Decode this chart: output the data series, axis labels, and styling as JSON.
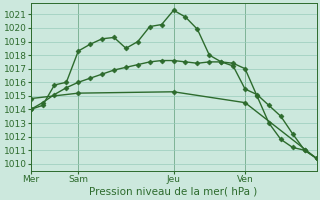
{
  "background_color": "#cce8dd",
  "grid_color": "#99ccbb",
  "line_color": "#2d6b2d",
  "marker": "D",
  "markersize": 2.5,
  "linewidth": 1.0,
  "ylim": [
    1009.5,
    1021.8
  ],
  "yticks": [
    1010,
    1011,
    1012,
    1013,
    1014,
    1015,
    1016,
    1017,
    1018,
    1019,
    1020,
    1021
  ],
  "xlabel": "Pression niveau de la mer( hPa )",
  "xlabel_fontsize": 7.5,
  "tick_fontsize": 6.5,
  "xtick_labels": [
    "Mer",
    "Sam",
    "Jeu",
    "Ven"
  ],
  "xtick_positions": [
    0,
    4,
    12,
    18
  ],
  "vlines": [
    0,
    4,
    12,
    18
  ],
  "num_points": 25,
  "line1_x": [
    0,
    1,
    2,
    3,
    4,
    5,
    6,
    7,
    8,
    9,
    10,
    11,
    12,
    13,
    14,
    15,
    16,
    17,
    18,
    19,
    20,
    21,
    22,
    23,
    24
  ],
  "line1": [
    1014.0,
    1014.3,
    1015.8,
    1016.0,
    1018.3,
    1018.8,
    1019.2,
    1019.3,
    1018.5,
    1019.0,
    1020.1,
    1020.25,
    1021.3,
    1020.8,
    1019.9,
    1018.0,
    1017.5,
    1017.2,
    1015.5,
    1015.1,
    1014.3,
    1013.5,
    1012.2,
    1011.0,
    1010.4
  ],
  "line2_x": [
    0,
    1,
    2,
    3,
    4,
    5,
    6,
    7,
    8,
    9,
    10,
    11,
    12,
    13,
    14,
    15,
    16,
    17,
    18,
    19,
    20,
    21,
    22,
    23,
    24
  ],
  "line2": [
    1014.0,
    1014.5,
    1015.1,
    1015.6,
    1016.0,
    1016.3,
    1016.6,
    1016.9,
    1017.1,
    1017.3,
    1017.5,
    1017.6,
    1017.6,
    1017.5,
    1017.4,
    1017.5,
    1017.5,
    1017.4,
    1017.0,
    1015.0,
    1013.0,
    1011.8,
    1011.2,
    1011.0,
    1010.4
  ],
  "line3_x": [
    0,
    4,
    12,
    18,
    24
  ],
  "line3": [
    1014.8,
    1015.2,
    1015.3,
    1014.5,
    1010.4
  ]
}
